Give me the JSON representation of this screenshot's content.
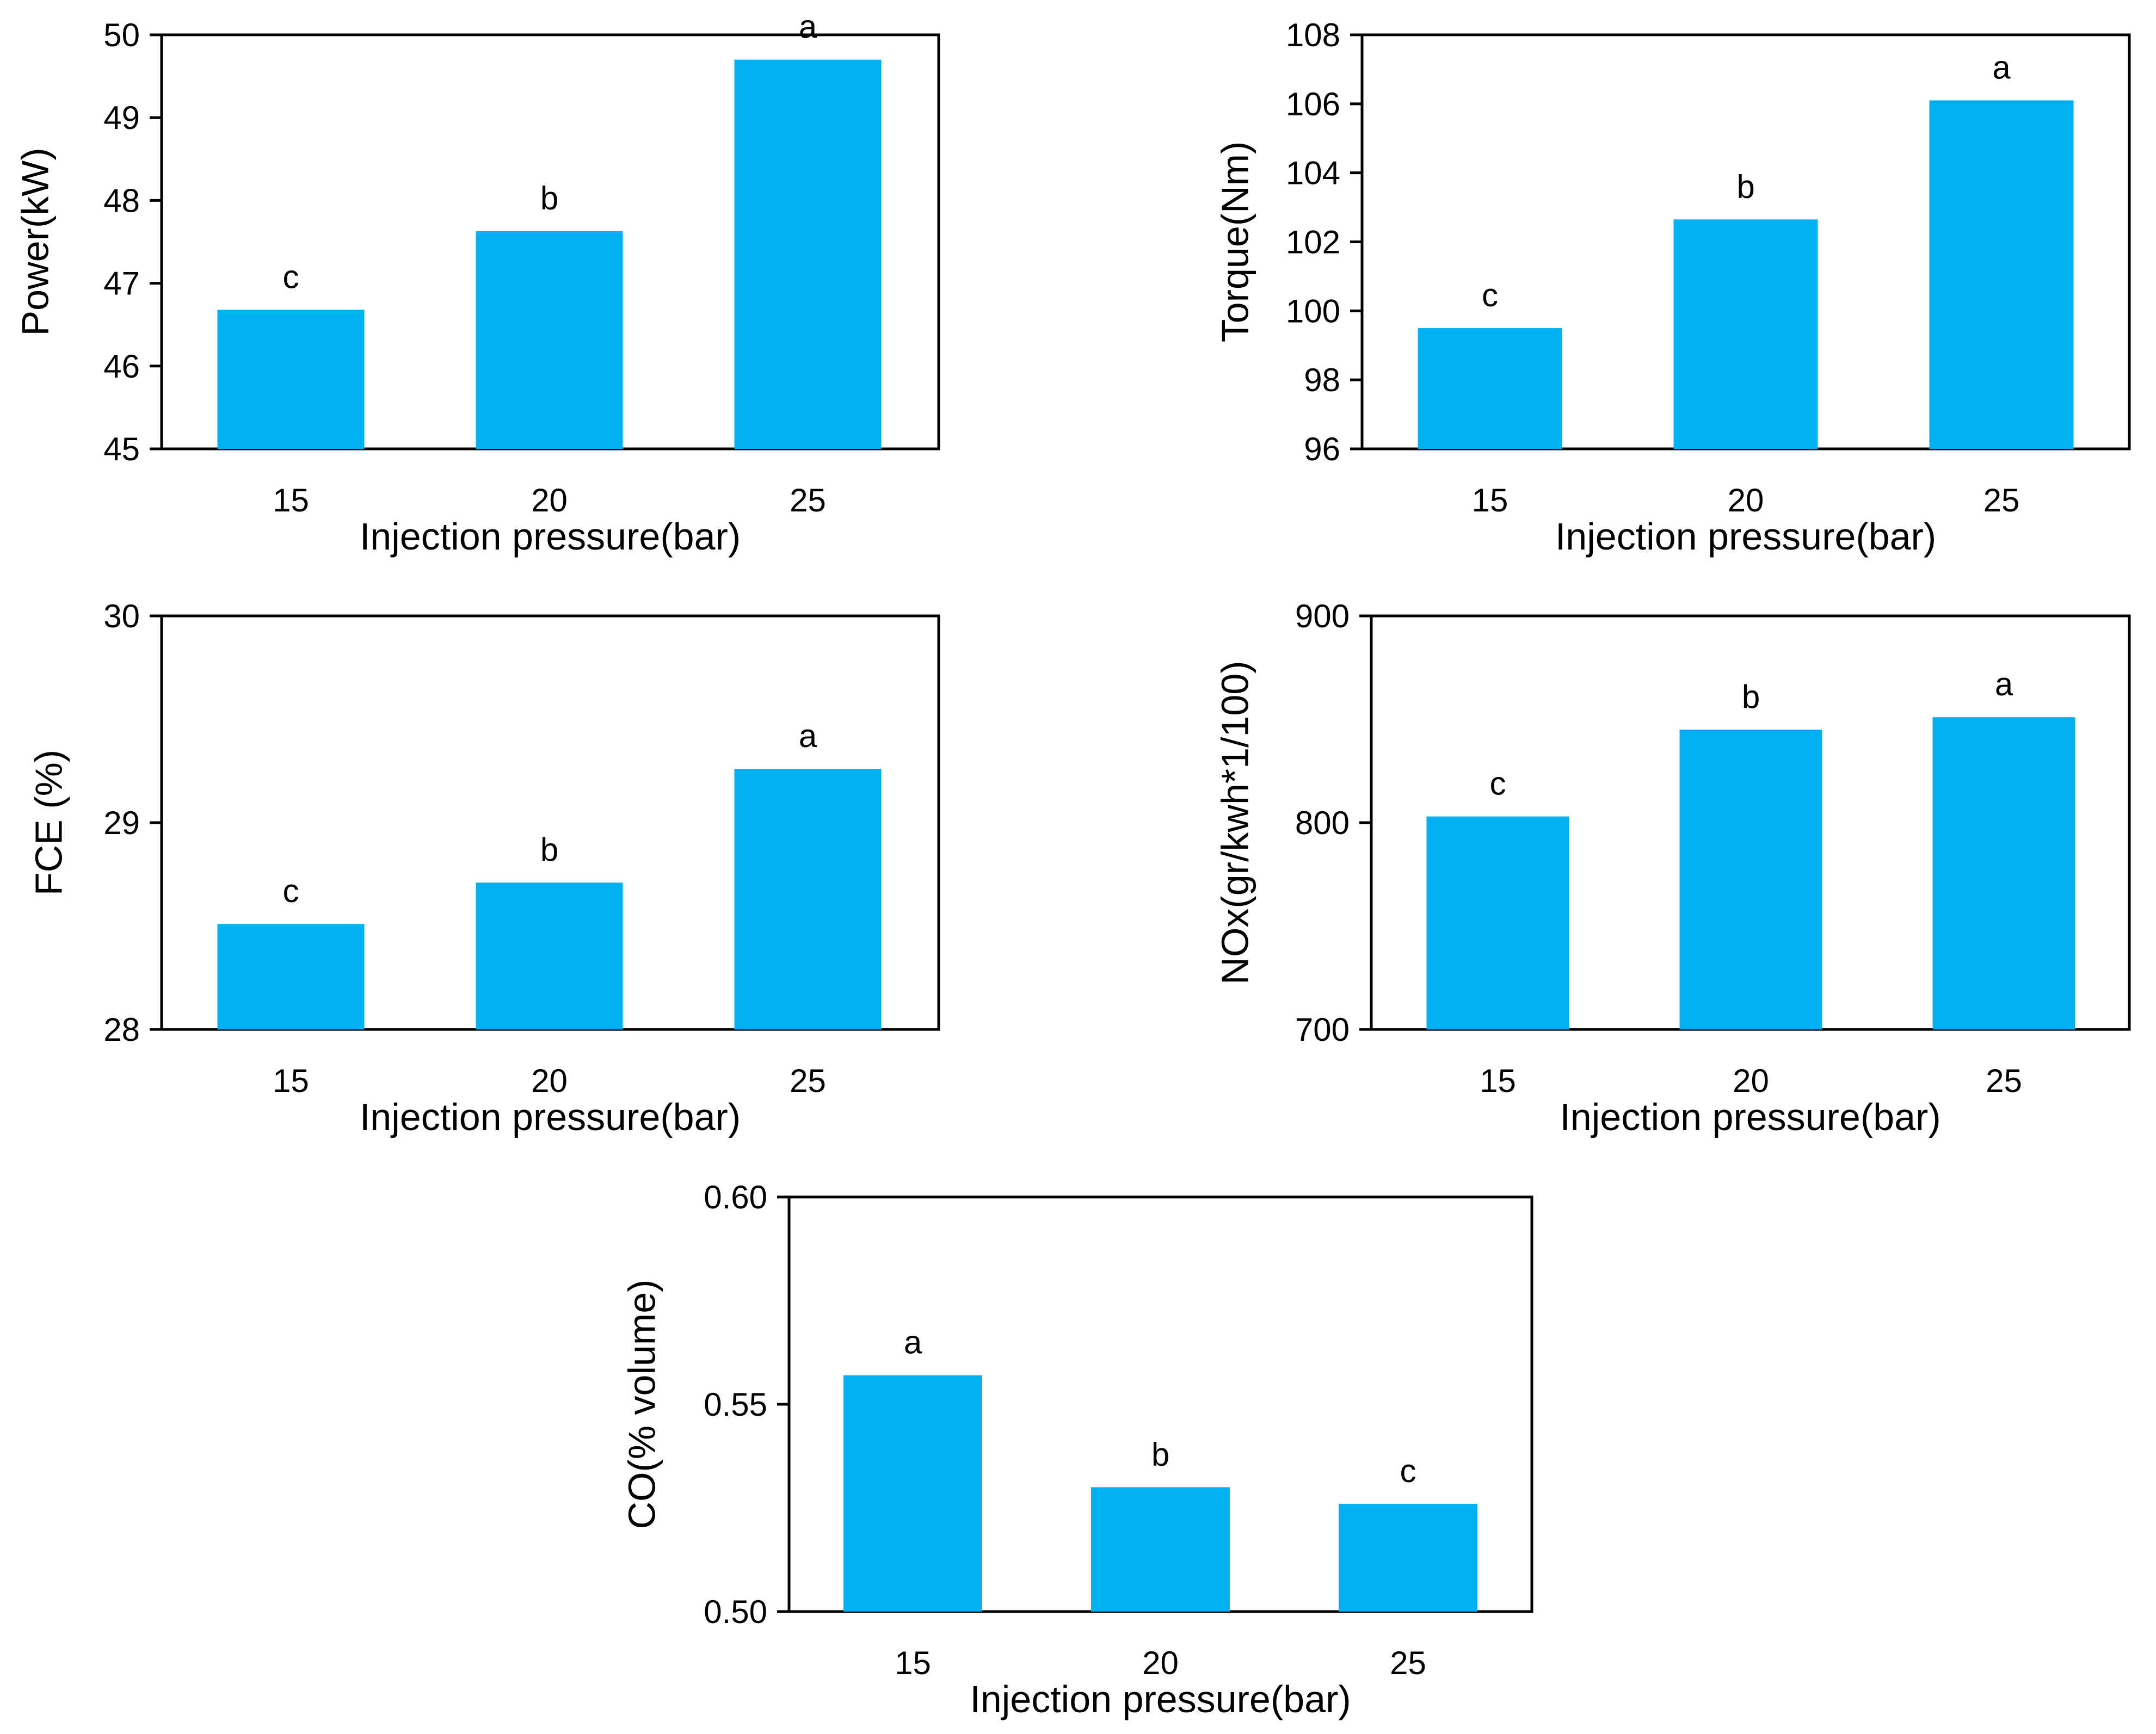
{
  "chart_data": [
    {
      "type": "bar",
      "categories": [
        "15",
        "20",
        "25"
      ],
      "values": [
        46.68,
        47.63,
        49.7
      ],
      "letters": [
        "c",
        "b",
        "a"
      ],
      "xlabel": "Injection pressure(bar)",
      "ylabel": "Power(kW)",
      "ylim": [
        45,
        50
      ],
      "yticks": [
        "45",
        "46",
        "47",
        "48",
        "49",
        "50"
      ],
      "color": "#00B0F0"
    },
    {
      "type": "bar",
      "categories": [
        "15",
        "20",
        "25"
      ],
      "values": [
        99.5,
        102.65,
        106.1
      ],
      "letters": [
        "c",
        "b",
        "a"
      ],
      "xlabel": "Injection pressure(bar)",
      "ylabel": "Torque(Nm)",
      "ylim": [
        96,
        108
      ],
      "yticks": [
        "96",
        "98",
        "100",
        "102",
        "104",
        "106",
        "108"
      ],
      "color": "#00B0F0"
    },
    {
      "type": "bar",
      "categories": [
        "15",
        "20",
        "25"
      ],
      "values": [
        28.51,
        28.71,
        29.26
      ],
      "letters": [
        "c",
        "b",
        "a"
      ],
      "xlabel": "Injection pressure(bar)",
      "ylabel": "FCE (%)",
      "ylim": [
        28,
        30
      ],
      "yticks": [
        "28",
        "29",
        "30"
      ],
      "color": "#00B0F0"
    },
    {
      "type": "bar",
      "categories": [
        "15",
        "20",
        "25"
      ],
      "values": [
        803,
        845,
        851
      ],
      "letters": [
        "c",
        "b",
        "a"
      ],
      "xlabel": "Injection pressure(bar)",
      "ylabel": "NOx(gr/kwh*1/100)",
      "ylim": [
        700,
        900
      ],
      "yticks": [
        "700",
        "800",
        "900"
      ],
      "color": "#00B0F0"
    },
    {
      "type": "bar",
      "categories": [
        "15",
        "20",
        "25"
      ],
      "values": [
        0.557,
        0.53,
        0.526
      ],
      "letters": [
        "a",
        "b",
        "c"
      ],
      "xlabel": "Injection pressure(bar)",
      "ylabel": "CO(% volume)",
      "ylim": [
        0.5,
        0.6
      ],
      "yticks": [
        "0.50",
        "0.55",
        "0.60"
      ],
      "color": "#00B0F0"
    }
  ]
}
